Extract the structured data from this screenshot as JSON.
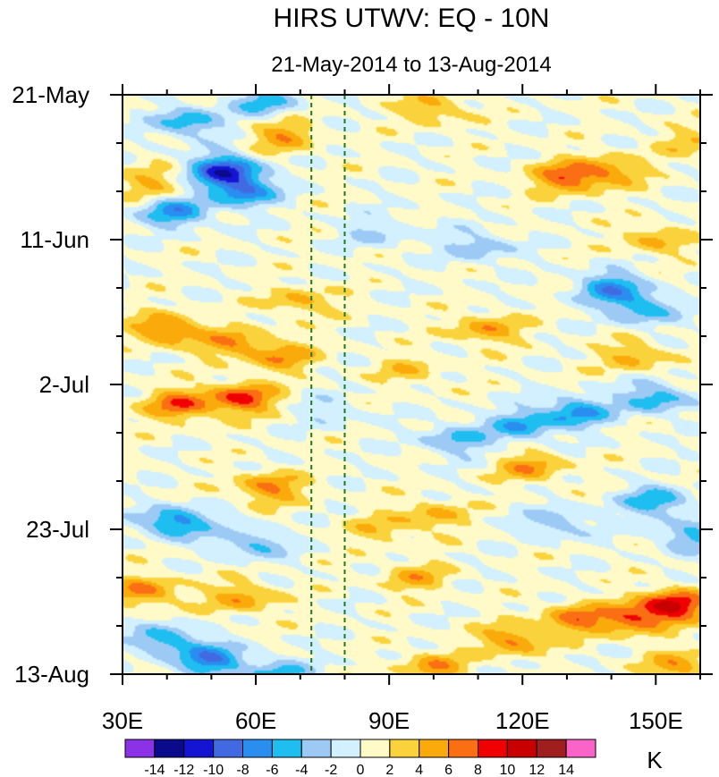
{
  "chart_data": {
    "type": "heatmap",
    "title": "HIRS UTWV: EQ - 10N",
    "subtitle": "21-May-2014 to 13-Aug-2014",
    "x_axis": {
      "range": [
        30,
        160
      ],
      "tick_values": [
        30,
        60,
        90,
        120,
        150
      ],
      "tick_labels": [
        "30E",
        "60E",
        "90E",
        "120E",
        "150E"
      ],
      "minor_step": 10
    },
    "y_axis": {
      "range_days": [
        0,
        84
      ],
      "direction": "downward",
      "tick_days": [
        0,
        21,
        42,
        63,
        84
      ],
      "tick_labels": [
        "21-May",
        "11-Jun",
        "2-Jul",
        "23-Jul",
        "13-Aug"
      ],
      "minor_step_days": 7
    },
    "reference_lines": [
      {
        "x": 72.5,
        "style": "dashed",
        "color": "#1f7a1f"
      },
      {
        "x": 80,
        "style": "dashed",
        "color": "#1f7a1f"
      }
    ],
    "colorbar": {
      "unit": "K",
      "boundaries": [
        -14,
        -12,
        -10,
        -8,
        -6,
        -4,
        -2,
        0,
        2,
        4,
        6,
        8,
        10,
        12,
        14
      ],
      "labels": [
        "-14",
        "-12",
        "-10",
        "-8",
        "-6",
        "-4",
        "-2",
        "0",
        "2",
        "4",
        "6",
        "8",
        "10",
        "12",
        "14"
      ],
      "colors": [
        "#8c32e6",
        "#0a0a8c",
        "#1414d2",
        "#4169e1",
        "#2a8ef0",
        "#1ebef0",
        "#9ccaf5",
        "#d2f0ff",
        "#fffac8",
        "#fad23c",
        "#faaa0a",
        "#fa6e14",
        "#f00000",
        "#c80000",
        "#a01e1e",
        "#fa64c8"
      ]
    },
    "anomaly_features": [
      {
        "lon": 53,
        "day": 11,
        "value": -11
      },
      {
        "lon": 45,
        "day": 4,
        "value": -6
      },
      {
        "lon": 62,
        "day": 1,
        "value": -5
      },
      {
        "lon": 42,
        "day": 17,
        "value": -7
      },
      {
        "lon": 57,
        "day": 14,
        "value": -8
      },
      {
        "lon": 130,
        "day": 12,
        "value": 7
      },
      {
        "lon": 140,
        "day": 11,
        "value": 5
      },
      {
        "lon": 100,
        "day": 2,
        "value": 4
      },
      {
        "lon": 66,
        "day": 6,
        "value": 5
      },
      {
        "lon": 37,
        "day": 13,
        "value": 4
      },
      {
        "lon": 40,
        "day": 34,
        "value": 7
      },
      {
        "lon": 55,
        "day": 36,
        "value": 5
      },
      {
        "lon": 43,
        "day": 45,
        "value": 7
      },
      {
        "lon": 57,
        "day": 44,
        "value": 8
      },
      {
        "lon": 66,
        "day": 38,
        "value": 5
      },
      {
        "lon": 70,
        "day": 30,
        "value": 4
      },
      {
        "lon": 112,
        "day": 34,
        "value": 5
      },
      {
        "lon": 145,
        "day": 38,
        "value": 4
      },
      {
        "lon": 132,
        "day": 46,
        "value": -7
      },
      {
        "lon": 120,
        "day": 48,
        "value": -6
      },
      {
        "lon": 105,
        "day": 50,
        "value": -5
      },
      {
        "lon": 150,
        "day": 44,
        "value": -6
      },
      {
        "lon": 140,
        "day": 28,
        "value": -7
      },
      {
        "lon": 147,
        "day": 31,
        "value": -6
      },
      {
        "lon": 110,
        "day": 22,
        "value": -4
      },
      {
        "lon": 88,
        "day": 20,
        "value": -3
      },
      {
        "lon": 42,
        "day": 62,
        "value": -8
      },
      {
        "lon": 60,
        "day": 65,
        "value": -5
      },
      {
        "lon": 50,
        "day": 82,
        "value": -8
      },
      {
        "lon": 40,
        "day": 79,
        "value": -6
      },
      {
        "lon": 65,
        "day": 84,
        "value": -5
      },
      {
        "lon": 63,
        "day": 57,
        "value": 6
      },
      {
        "lon": 35,
        "day": 72,
        "value": 6
      },
      {
        "lon": 57,
        "day": 73,
        "value": 5
      },
      {
        "lon": 100,
        "day": 61,
        "value": 4
      },
      {
        "lon": 154,
        "day": 74,
        "value": 10
      },
      {
        "lon": 145,
        "day": 76,
        "value": 7
      },
      {
        "lon": 132,
        "day": 76,
        "value": 6
      },
      {
        "lon": 118,
        "day": 79,
        "value": 6
      },
      {
        "lon": 100,
        "day": 83,
        "value": 5
      },
      {
        "lon": 155,
        "day": 83,
        "value": 5
      },
      {
        "lon": 150,
        "day": 59,
        "value": -6
      },
      {
        "lon": 128,
        "day": 62,
        "value": -4
      },
      {
        "lon": 158,
        "day": 64,
        "value": -5
      },
      {
        "lon": 122,
        "day": 54,
        "value": 5
      },
      {
        "lon": 88,
        "day": 63,
        "value": 3
      },
      {
        "lon": 96,
        "day": 70,
        "value": 4
      },
      {
        "lon": 77,
        "day": 46,
        "value": -2
      },
      {
        "lon": 95,
        "day": 40,
        "value": 3
      },
      {
        "lon": 150,
        "day": 21,
        "value": 4
      },
      {
        "lon": 158,
        "day": 7,
        "value": 3
      }
    ]
  }
}
